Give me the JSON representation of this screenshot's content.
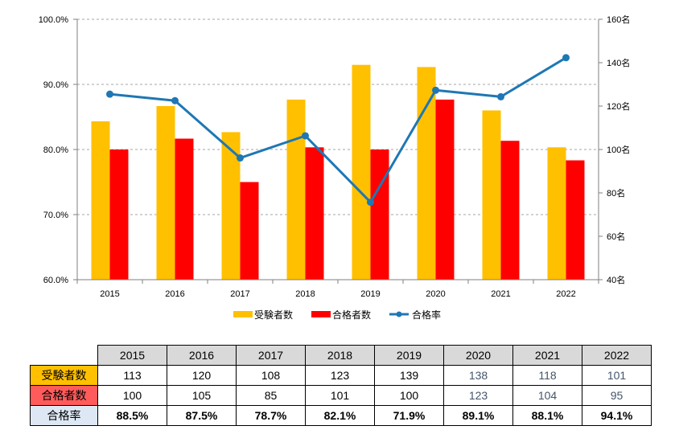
{
  "chart_data": {
    "type": "bar+line",
    "categories": [
      "2015",
      "2016",
      "2017",
      "2018",
      "2019",
      "2020",
      "2021",
      "2022"
    ],
    "series": [
      {
        "name": "受験者数",
        "kind": "bar",
        "axis": "right",
        "color": "#ffc000",
        "values": [
          113,
          120,
          108,
          123,
          139,
          138,
          118,
          101
        ]
      },
      {
        "name": "合格者数",
        "kind": "bar",
        "axis": "right",
        "color": "#ff0000",
        "values": [
          100,
          105,
          85,
          101,
          100,
          123,
          104,
          95
        ]
      },
      {
        "name": "合格率",
        "kind": "line",
        "axis": "left",
        "color": "#1f77b4",
        "values": [
          88.5,
          87.5,
          78.7,
          82.1,
          71.9,
          89.1,
          88.1,
          94.1
        ]
      }
    ],
    "y_left": {
      "min": 60,
      "max": 100,
      "step": 10,
      "ticks": [
        "60.0%",
        "70.0%",
        "80.0%",
        "90.0%",
        "100.0%"
      ]
    },
    "y_right": {
      "min": 40,
      "max": 160,
      "step": 20,
      "ticks": [
        "40名",
        "60名",
        "80名",
        "100名",
        "120名",
        "140名",
        "160名"
      ]
    },
    "grid": "dashed-horizontal",
    "legend": "bottom-center"
  },
  "table": {
    "years": [
      "2015",
      "2016",
      "2017",
      "2018",
      "2019",
      "2020",
      "2021",
      "2022"
    ],
    "rows": [
      {
        "label": "受験者数",
        "values": [
          "113",
          "120",
          "108",
          "123",
          "139",
          "138",
          "118",
          "101"
        ]
      },
      {
        "label": "合格者数",
        "values": [
          "100",
          "105",
          "85",
          "101",
          "100",
          "123",
          "104",
          "95"
        ]
      },
      {
        "label": "合格率",
        "values": [
          "88.5%",
          "87.5%",
          "78.7%",
          "82.1%",
          "71.9%",
          "89.1%",
          "88.1%",
          "94.1%"
        ]
      }
    ]
  }
}
